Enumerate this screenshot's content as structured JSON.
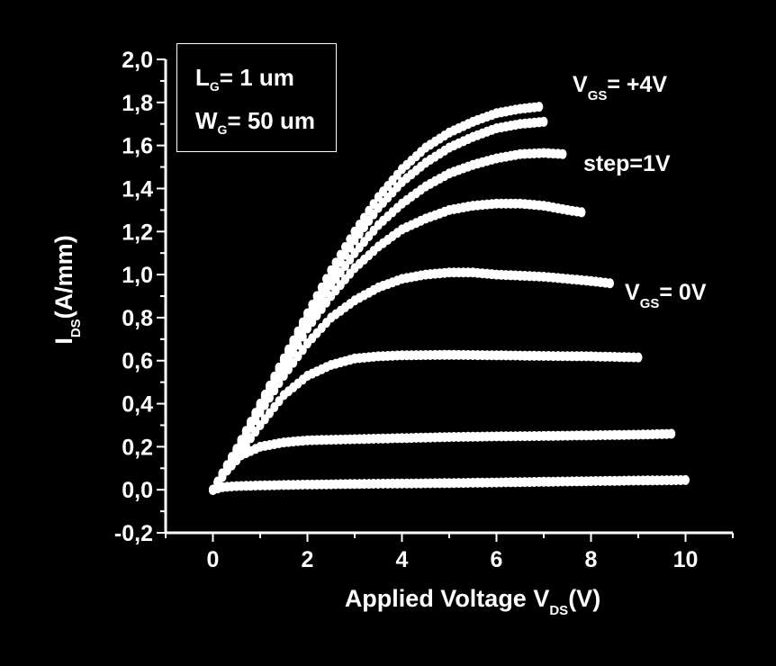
{
  "chart_data": {
    "type": "scatter",
    "title": "",
    "xlabel": {
      "main": "Applied Voltage V",
      "sub": "DS",
      "unit": "(V)"
    },
    "ylabel": {
      "main": "I",
      "sub": "DS",
      "unit": "(A/mm)"
    },
    "xlim": [
      -1,
      11
    ],
    "ylim": [
      -0.2,
      2.0
    ],
    "x_ticks": [
      "0",
      "2",
      "4",
      "6",
      "8",
      "10"
    ],
    "x_tick_values": [
      0,
      2,
      4,
      6,
      8,
      10
    ],
    "y_ticks": [
      "-0,2",
      "0,0",
      "0,2",
      "0,4",
      "0,6",
      "0,8",
      "1,0",
      "1,2",
      "1,4",
      "1,6",
      "1,8",
      "2,0"
    ],
    "y_tick_values": [
      -0.2,
      0.0,
      0.2,
      0.4,
      0.6,
      0.8,
      1.0,
      1.2,
      1.4,
      1.6,
      1.8,
      2.0
    ],
    "grid": false,
    "marker_color": "#ffffff",
    "background_color": "#000000",
    "series": [
      {
        "points": [
          [
            0,
            0
          ],
          [
            0.2,
            0.012
          ],
          [
            0.5,
            0.017
          ],
          [
            1,
            0.02
          ],
          [
            2,
            0.024
          ],
          [
            3,
            0.027
          ],
          [
            4,
            0.029
          ],
          [
            5,
            0.031
          ],
          [
            6,
            0.034
          ],
          [
            7,
            0.037
          ],
          [
            8,
            0.04
          ],
          [
            9,
            0.043
          ],
          [
            10,
            0.045
          ]
        ]
      },
      {
        "points": [
          [
            0,
            0
          ],
          [
            0.3,
            0.09
          ],
          [
            0.6,
            0.16
          ],
          [
            1,
            0.2
          ],
          [
            1.5,
            0.22
          ],
          [
            2,
            0.23
          ],
          [
            3,
            0.235
          ],
          [
            4,
            0.24
          ],
          [
            5,
            0.245
          ],
          [
            6,
            0.248
          ],
          [
            7,
            0.25
          ],
          [
            8,
            0.253
          ],
          [
            9,
            0.256
          ],
          [
            9.7,
            0.26
          ]
        ]
      },
      {
        "points": [
          [
            0,
            0
          ],
          [
            0.5,
            0.15
          ],
          [
            1,
            0.3
          ],
          [
            1.5,
            0.44
          ],
          [
            2,
            0.53
          ],
          [
            2.5,
            0.58
          ],
          [
            3,
            0.61
          ],
          [
            3.5,
            0.62
          ],
          [
            4,
            0.625
          ],
          [
            5,
            0.627
          ],
          [
            6,
            0.625
          ],
          [
            7,
            0.622
          ],
          [
            8,
            0.62
          ],
          [
            9,
            0.615
          ]
        ]
      },
      {
        "points": [
          [
            0,
            0
          ],
          [
            0.5,
            0.18
          ],
          [
            1,
            0.36
          ],
          [
            1.5,
            0.53
          ],
          [
            2,
            0.68
          ],
          [
            2.5,
            0.8
          ],
          [
            3,
            0.88
          ],
          [
            3.5,
            0.94
          ],
          [
            4,
            0.98
          ],
          [
            4.5,
            1.0
          ],
          [
            5,
            1.01
          ],
          [
            5.5,
            1.01
          ],
          [
            6,
            1.0
          ],
          [
            6.5,
            0.995
          ],
          [
            7,
            0.99
          ],
          [
            7.5,
            0.98
          ],
          [
            8,
            0.97
          ],
          [
            8.4,
            0.96
          ]
        ]
      },
      {
        "points": [
          [
            0,
            0
          ],
          [
            0.5,
            0.18
          ],
          [
            1,
            0.37
          ],
          [
            1.5,
            0.56
          ],
          [
            2,
            0.75
          ],
          [
            2.5,
            0.9
          ],
          [
            3,
            1.03
          ],
          [
            3.5,
            1.13
          ],
          [
            4,
            1.21
          ],
          [
            4.5,
            1.26
          ],
          [
            5,
            1.3
          ],
          [
            5.5,
            1.32
          ],
          [
            6,
            1.33
          ],
          [
            6.5,
            1.33
          ],
          [
            7,
            1.32
          ],
          [
            7.5,
            1.3
          ],
          [
            7.8,
            1.29
          ]
        ]
      },
      {
        "points": [
          [
            0,
            0
          ],
          [
            0.5,
            0.18
          ],
          [
            1,
            0.38
          ],
          [
            1.5,
            0.58
          ],
          [
            2,
            0.78
          ],
          [
            2.5,
            0.95
          ],
          [
            3,
            1.1
          ],
          [
            3.5,
            1.23
          ],
          [
            4,
            1.33
          ],
          [
            4.5,
            1.41
          ],
          [
            5,
            1.47
          ],
          [
            5.5,
            1.51
          ],
          [
            6,
            1.54
          ],
          [
            6.5,
            1.56
          ],
          [
            7,
            1.565
          ],
          [
            7.4,
            1.56
          ]
        ]
      },
      {
        "points": [
          [
            0,
            0
          ],
          [
            0.5,
            0.19
          ],
          [
            1,
            0.39
          ],
          [
            1.5,
            0.6
          ],
          [
            2,
            0.8
          ],
          [
            2.5,
            0.99
          ],
          [
            3,
            1.16
          ],
          [
            3.5,
            1.31
          ],
          [
            4,
            1.43
          ],
          [
            4.5,
            1.52
          ],
          [
            5,
            1.59
          ],
          [
            5.5,
            1.64
          ],
          [
            6,
            1.68
          ],
          [
            6.5,
            1.7
          ],
          [
            7,
            1.71
          ]
        ]
      },
      {
        "points": [
          [
            0,
            0
          ],
          [
            0.5,
            0.19
          ],
          [
            1,
            0.4
          ],
          [
            1.5,
            0.61
          ],
          [
            2,
            0.82
          ],
          [
            2.5,
            1.02
          ],
          [
            3,
            1.2
          ],
          [
            3.5,
            1.36
          ],
          [
            4,
            1.49
          ],
          [
            4.5,
            1.59
          ],
          [
            5,
            1.66
          ],
          [
            5.5,
            1.71
          ],
          [
            6,
            1.75
          ],
          [
            6.5,
            1.77
          ],
          [
            6.9,
            1.78
          ]
        ]
      }
    ]
  },
  "annotations": {
    "vgs_top": {
      "main": "V",
      "sub": "GS",
      "text": "= +4V"
    },
    "step": "step=1V",
    "vgs_bottom": {
      "main": "V",
      "sub": "GS",
      "text": "= 0V"
    }
  },
  "info_box": {
    "lg": {
      "main": "L",
      "sub": "G",
      "text": "= 1 um"
    },
    "wg": {
      "main": "W",
      "sub": "G",
      "text": "= 50 um"
    }
  }
}
